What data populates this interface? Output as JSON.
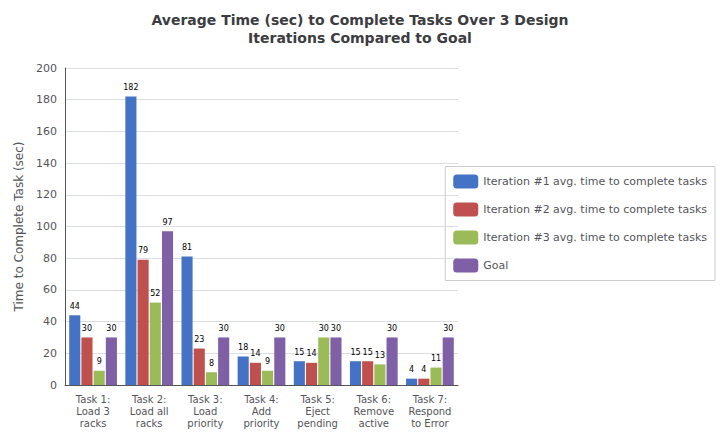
{
  "chart_data": {
    "type": "bar",
    "title": "Average Time (sec) to Complete Tasks Over 3 Design\nIterations Compared to Goal",
    "ylabel": "Time to Complete Task (sec)",
    "categories": [
      "Task 1:\nLoad 3\nracks",
      "Task 2:\nLoad all\nracks",
      "Task 3:\nLoad\npriority",
      "Task 4:\nAdd\npriority",
      "Task 5:\nEject\npending",
      "Task 6:\nRemove\nactive",
      "Task 7:\nRespond\nto Error"
    ],
    "series": [
      {
        "name": "Iteration #1 avg. time to complete tasks",
        "color": "#4472C4",
        "values": [
          44,
          182,
          81,
          18,
          15,
          15,
          4
        ]
      },
      {
        "name": "Iteration #2 avg. time to complete tasks",
        "color": "#C0504D",
        "values": [
          30,
          79,
          23,
          14,
          14,
          15,
          4
        ]
      },
      {
        "name": "Iteration #3 avg. time to complete tasks",
        "color": "#9BBB59",
        "values": [
          9,
          52,
          8,
          9,
          30,
          13,
          11
        ]
      },
      {
        "name": "Goal",
        "color": "#7F5FA6",
        "values": [
          30,
          97,
          30,
          30,
          30,
          30,
          30
        ]
      }
    ],
    "ylim": [
      0,
      200
    ],
    "yticks": [
      0,
      20,
      40,
      60,
      80,
      100,
      120,
      140,
      160,
      180,
      200
    ],
    "grid": true,
    "legend": "right",
    "data_labels": true
  }
}
